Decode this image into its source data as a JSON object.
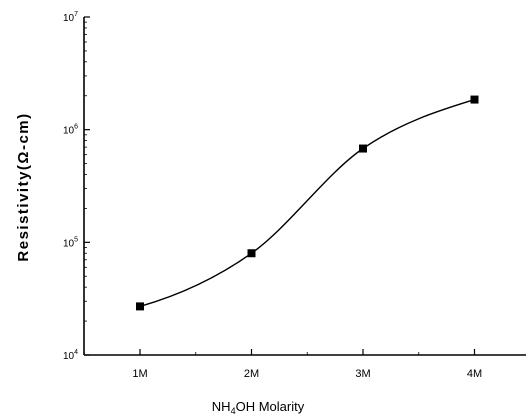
{
  "chart_data": {
    "type": "line",
    "title": "",
    "xlabel": {
      "prefix": "NH",
      "sub": "4",
      "suffix": "OH  Molarity"
    },
    "ylabel": "Resistivity(Ω-cm)",
    "categories": [
      "1M",
      "2M",
      "3M",
      "4M"
    ],
    "y_scale": "log",
    "ylim": [
      10000,
      10000000
    ],
    "y_ticks": [
      {
        "base": "10",
        "exp": "4",
        "value": 10000
      },
      {
        "base": "10",
        "exp": "5",
        "value": 100000
      },
      {
        "base": "10",
        "exp": "6",
        "value": 1000000
      },
      {
        "base": "10",
        "exp": "7",
        "value": 10000000
      }
    ],
    "series": [
      {
        "marker": "square",
        "values": [
          27000,
          80000,
          680000,
          1850000
        ]
      }
    ],
    "fit_curve": "smooth",
    "grid": false,
    "legend": "none",
    "colors": {
      "axis": "#000000",
      "marker": "#000000",
      "line": "#000000"
    }
  }
}
